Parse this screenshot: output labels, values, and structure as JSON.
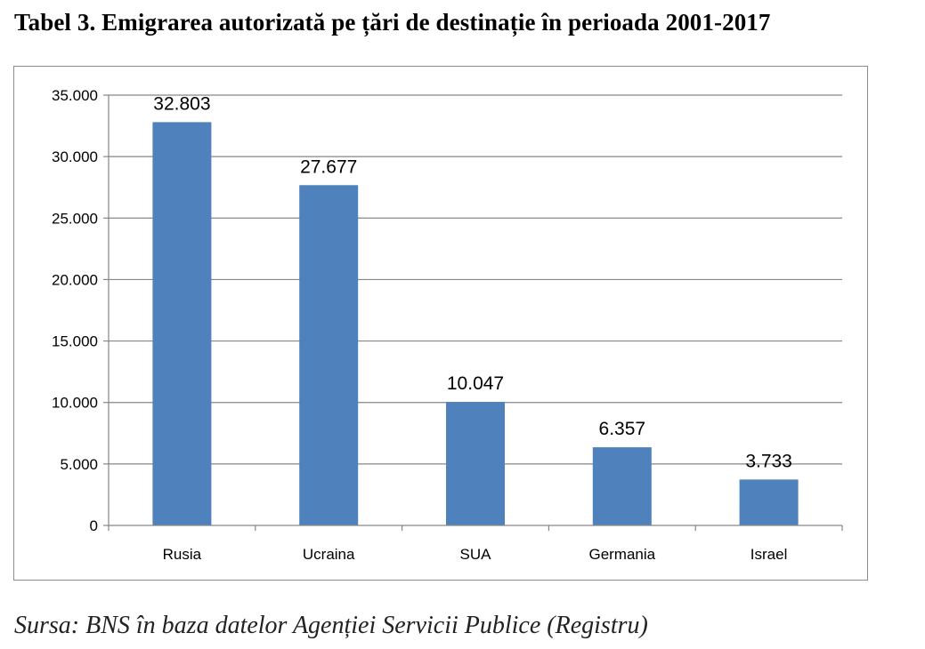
{
  "title": "Tabel 3. Emigrarea autorizată pe țări de destinație în perioada 2001-2017",
  "source": "Sursa: BNS în baza datelor Agenției Servicii Publice (Registru)",
  "chart_data": {
    "type": "bar",
    "title": "",
    "xlabel": "",
    "ylabel": "",
    "categories": [
      "Rusia",
      "Ucraina",
      "SUA",
      "Germania",
      "Israel"
    ],
    "values": [
      32803,
      27677,
      10047,
      6357,
      3733
    ],
    "data_labels": [
      "32.803",
      "27.677",
      "10.047",
      "6.357",
      "3.733"
    ],
    "ylim": [
      0,
      35000
    ],
    "yticks": [
      0,
      5000,
      10000,
      15000,
      20000,
      25000,
      30000,
      35000
    ],
    "ytick_labels": [
      "0",
      "5.000",
      "10.000",
      "15.000",
      "20.000",
      "25.000",
      "30.000",
      "35.000"
    ],
    "bar_color": "#4f81bd",
    "grid": true,
    "legend": "none"
  }
}
